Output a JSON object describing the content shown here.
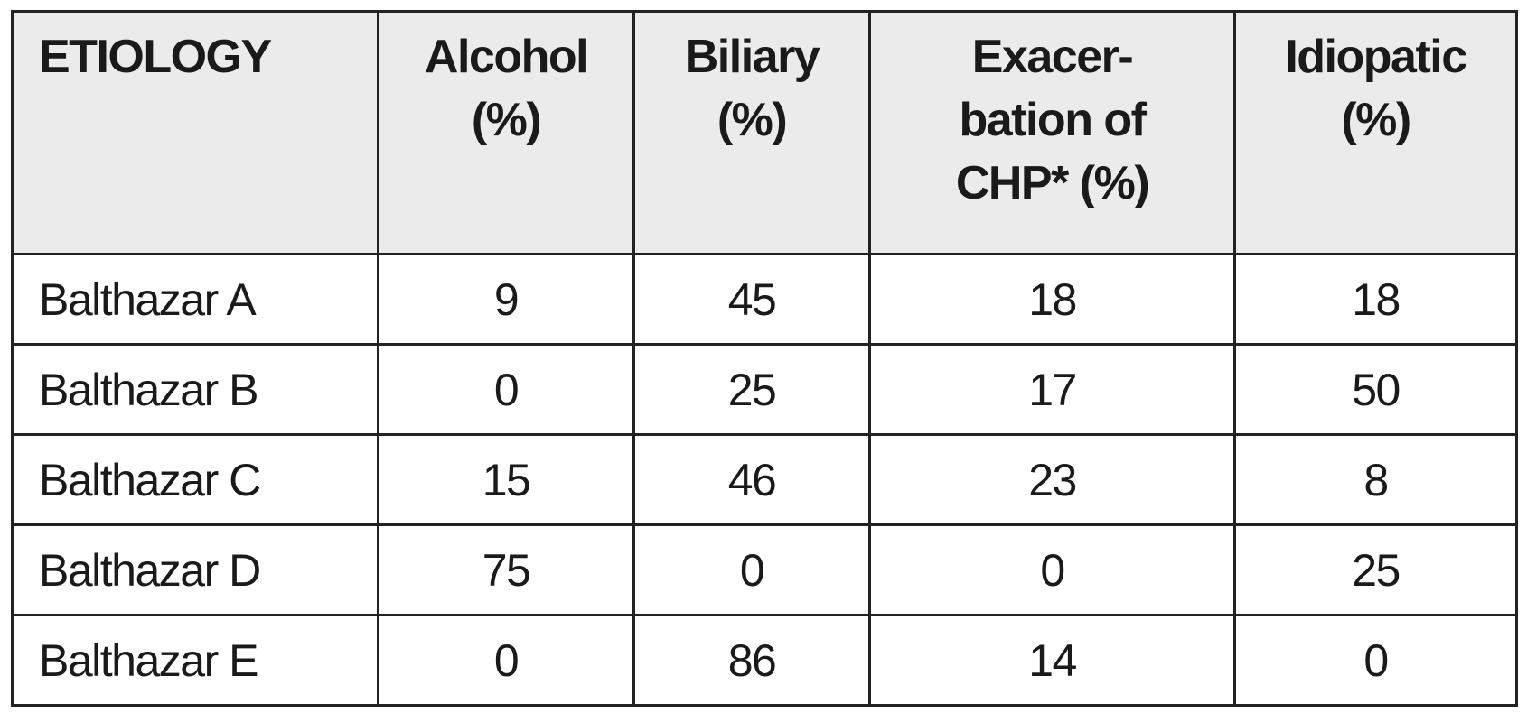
{
  "table": {
    "header": [
      [
        "ETIOLOGY"
      ],
      [
        "Alcohol",
        "(%)"
      ],
      [
        "Biliary",
        "(%)"
      ],
      [
        "Exacer-",
        "bation of",
        "CHP* (%)"
      ],
      [
        "Idiopatic",
        "(%)"
      ]
    ],
    "rows": [
      [
        "Balthazar A",
        9,
        45,
        18,
        18
      ],
      [
        "Balthazar B",
        0,
        25,
        17,
        50
      ],
      [
        "Balthazar C",
        15,
        46,
        23,
        8
      ],
      [
        "Balthazar D",
        75,
        0,
        0,
        25
      ],
      [
        "Balthazar E",
        0,
        86,
        14,
        0
      ]
    ]
  }
}
